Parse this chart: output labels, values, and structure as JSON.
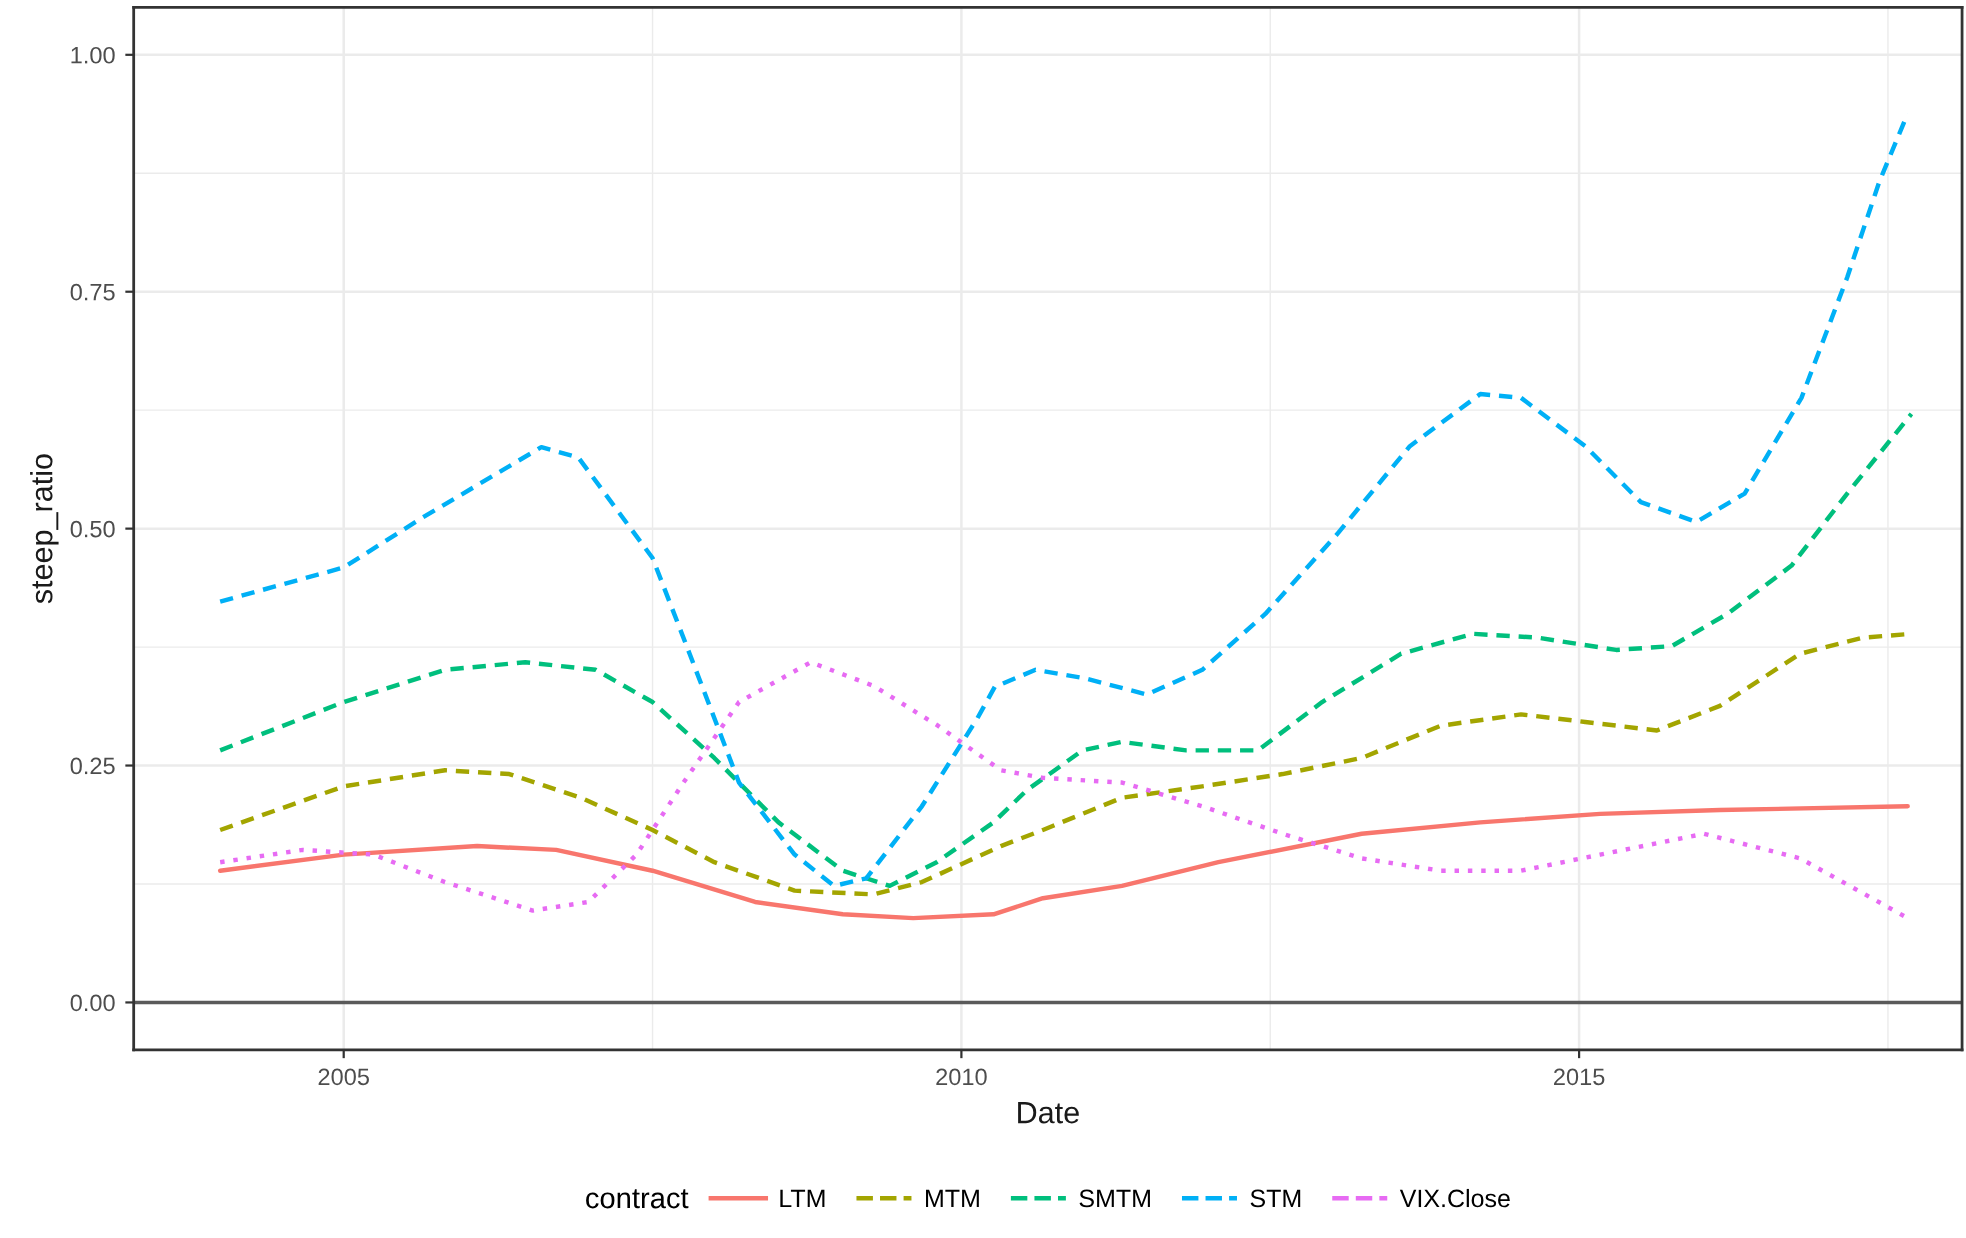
{
  "chart_data": {
    "type": "line",
    "xlabel": "Date",
    "ylabel": "steep_ratio",
    "legend_title": "contract",
    "legend": "bottom",
    "grid": true,
    "xlim": [
      2003.3,
      2018.1
    ],
    "xticks": [
      2005,
      2010,
      2015
    ],
    "ylim": [
      -0.05,
      1.05
    ],
    "yticks": [
      {
        "value": 0,
        "label": "0.00"
      },
      {
        "value": 0.25,
        "label": "0.25"
      },
      {
        "value": 0.5,
        "label": "0.50"
      },
      {
        "value": 0.75,
        "label": "0.75"
      },
      {
        "value": 1,
        "label": "1.00"
      }
    ],
    "ref_lines": [
      {
        "axis": "y",
        "value": 0,
        "color": "#5a5a5a"
      }
    ],
    "series": [
      {
        "name": "LTM",
        "color": "#f8766d",
        "line_style": "solid",
        "x": [
          2004.0,
          2005.0,
          2006.08,
          2006.72,
          2007.5,
          2008.33,
          2009.04,
          2009.61,
          2010.26,
          2010.66,
          2011.3,
          2012.08,
          2013.24,
          2014.2,
          2015.17,
          2016.14,
          2017.66
        ],
        "values": [
          0.139,
          0.156,
          0.165,
          0.161,
          0.139,
          0.106,
          0.093,
          0.089,
          0.093,
          0.11,
          0.123,
          0.148,
          0.178,
          0.19,
          0.199,
          0.203,
          0.207
        ]
      },
      {
        "name": "MTM",
        "color": "#a3a500",
        "line_style": "dashed",
        "x": [
          2004.0,
          2005.0,
          2005.82,
          2006.34,
          2006.92,
          2007.5,
          2008.0,
          2008.65,
          2009.29,
          2009.68,
          2010.32,
          2010.66,
          2011.3,
          2011.95,
          2012.6,
          2013.24,
          2013.88,
          2014.53,
          2015.05,
          2015.63,
          2016.14,
          2016.79,
          2017.3,
          2017.69
        ],
        "values": [
          0.182,
          0.228,
          0.245,
          0.241,
          0.216,
          0.182,
          0.148,
          0.118,
          0.114,
          0.127,
          0.165,
          0.182,
          0.216,
          0.228,
          0.241,
          0.258,
          0.292,
          0.304,
          0.296,
          0.287,
          0.313,
          0.368,
          0.385,
          0.389
        ]
      },
      {
        "name": "SMTM",
        "color": "#00bf7d",
        "line_style": "dashed",
        "x": [
          2004.0,
          2005.0,
          2005.82,
          2006.47,
          2007.04,
          2007.5,
          2008.0,
          2008.52,
          2009.04,
          2009.42,
          2009.8,
          2010.26,
          2010.53,
          2010.98,
          2011.3,
          2011.82,
          2012.4,
          2012.92,
          2013.56,
          2014.14,
          2014.66,
          2015.3,
          2015.75,
          2016.2,
          2016.72,
          2017.17,
          2017.69
        ],
        "values": [
          0.266,
          0.317,
          0.351,
          0.359,
          0.351,
          0.317,
          0.258,
          0.19,
          0.139,
          0.123,
          0.148,
          0.19,
          0.224,
          0.266,
          0.275,
          0.266,
          0.266,
          0.317,
          0.368,
          0.389,
          0.385,
          0.372,
          0.376,
          0.41,
          0.461,
          0.537,
          0.621
        ]
      },
      {
        "name": "STM",
        "color": "#00b0f6",
        "line_style": "dashed",
        "x": [
          2004.0,
          2005.0,
          2005.63,
          2006.6,
          2006.9,
          2007.5,
          2007.8,
          2008.2,
          2008.65,
          2008.97,
          2009.23,
          2009.68,
          2010.13,
          2010.27,
          2010.6,
          2011.0,
          2011.5,
          2011.95,
          2012.46,
          2013.04,
          2013.63,
          2014.2,
          2014.53,
          2015.05,
          2015.5,
          2015.95,
          2016.34,
          2016.8,
          2017.17,
          2017.43,
          2017.66
        ],
        "values": [
          0.423,
          0.459,
          0.511,
          0.586,
          0.575,
          0.469,
          0.368,
          0.232,
          0.156,
          0.123,
          0.131,
          0.207,
          0.3,
          0.333,
          0.351,
          0.342,
          0.325,
          0.351,
          0.41,
          0.494,
          0.587,
          0.642,
          0.638,
          0.587,
          0.528,
          0.507,
          0.537,
          0.638,
          0.765,
          0.866,
          0.938
        ]
      },
      {
        "name": "VIX.Close",
        "color": "#e76bf3",
        "line_style": "dotted",
        "x": [
          2004.0,
          2004.67,
          2005.24,
          2005.82,
          2006.53,
          2006.98,
          2007.37,
          2007.75,
          2008.2,
          2008.78,
          2009.29,
          2009.81,
          2010.32,
          2010.66,
          2011.3,
          2011.95,
          2012.6,
          2013.24,
          2013.88,
          2014.53,
          2015.17,
          2016.01,
          2016.79,
          2017.66
        ],
        "values": [
          0.148,
          0.161,
          0.156,
          0.127,
          0.097,
          0.106,
          0.156,
          0.232,
          0.317,
          0.359,
          0.334,
          0.292,
          0.245,
          0.237,
          0.232,
          0.207,
          0.178,
          0.152,
          0.139,
          0.139,
          0.156,
          0.178,
          0.152,
          0.089
        ]
      }
    ]
  }
}
